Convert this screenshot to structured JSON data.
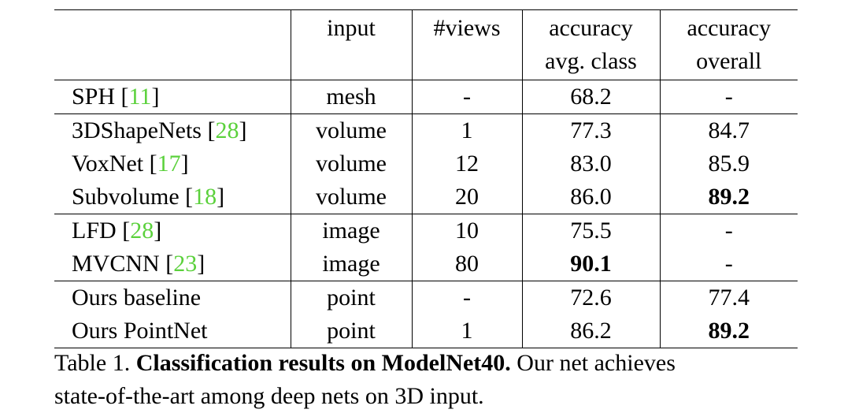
{
  "table": {
    "headers": {
      "input": "input",
      "views": "#views",
      "acc_class_line1": "accuracy",
      "acc_class_line2": "avg. class",
      "acc_overall_line1": "accuracy",
      "acc_overall_line2": "overall"
    },
    "rows": [
      {
        "method": "SPH",
        "cite": "11",
        "input": "mesh",
        "views": "-",
        "acc_class": "68.2",
        "acc_overall": "-"
      },
      {
        "method": "3DShapeNets",
        "cite": "28",
        "input": "volume",
        "views": "1",
        "acc_class": "77.3",
        "acc_overall": "84.7"
      },
      {
        "method": "VoxNet",
        "cite": "17",
        "input": "volume",
        "views": "12",
        "acc_class": "83.0",
        "acc_overall": "85.9"
      },
      {
        "method": "Subvolume",
        "cite": "18",
        "input": "volume",
        "views": "20",
        "acc_class": "86.0",
        "acc_overall": "89.2"
      },
      {
        "method": "LFD",
        "cite": "28",
        "input": "image",
        "views": "10",
        "acc_class": "75.5",
        "acc_overall": "-"
      },
      {
        "method": "MVCNN",
        "cite": "23",
        "input": "image",
        "views": "80",
        "acc_class": "90.1",
        "acc_overall": "-"
      },
      {
        "method": "Ours baseline",
        "cite": "",
        "input": "point",
        "views": "-",
        "acc_class": "72.6",
        "acc_overall": "77.4"
      },
      {
        "method": "Ours PointNet",
        "cite": "",
        "input": "point",
        "views": "1",
        "acc_class": "86.2",
        "acc_overall": "89.2"
      }
    ],
    "bold_cells": [
      "rows.3.acc_overall",
      "rows.5.acc_class",
      "rows.7.acc_overall"
    ]
  },
  "caption": {
    "label": "Table 1.",
    "title": "Classification results on ModelNet40.",
    "text_line1": "Our net achieves",
    "text_line2": "state-of-the-art among deep nets on 3D input."
  },
  "colors": {
    "citation": "#5bd13c",
    "text": "#000000",
    "background": "#ffffff"
  }
}
